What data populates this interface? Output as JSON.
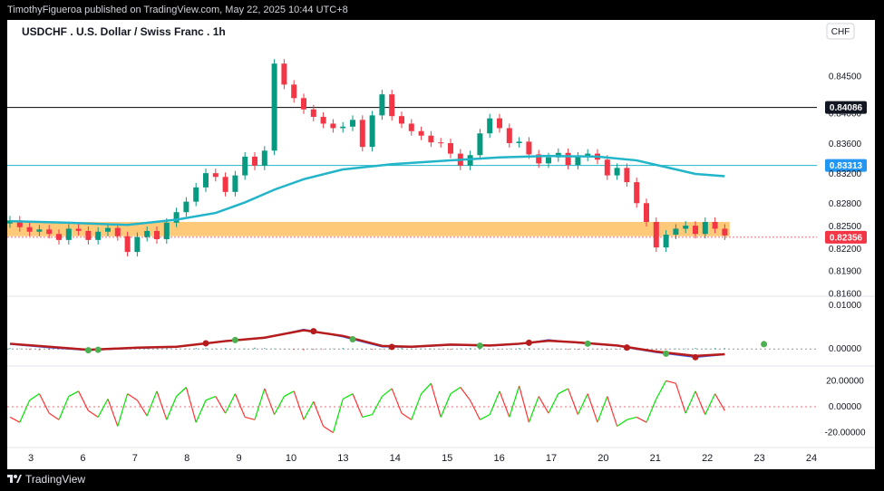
{
  "header": {
    "publish_line": "TimothyFigueroa published on TradingView.com, May 22, 2025 10:44 UTC+8"
  },
  "chart_title": "USDCHF . U.S. Dollar / Swiss Franc . 1h",
  "currency_label": "CHF",
  "footer": {
    "brand": "TradingView",
    "logo_icon": "tradingview-logo-icon"
  },
  "colors": {
    "bull_candle": "#089981",
    "bear_candle": "#f23645",
    "ma_line": "#22b5c9",
    "zone_fill": "#ffb74d",
    "resistance_line": "#000000",
    "support_line": "#22b5c9",
    "macd_line": "#2962ff",
    "signal_up": "#4caf50",
    "signal_down": "#b71c1c",
    "rsi_up": "#00e600",
    "rsi_down": "#ff3333"
  },
  "chart_data": [
    {
      "type": "candlestick",
      "panel": "price",
      "title": "USDCHF . U.S. Dollar / Swiss Franc . 1h",
      "x_tick_labels": [
        "3",
        "6",
        "7",
        "8",
        "9",
        "10",
        "13",
        "14",
        "15",
        "16",
        "17",
        "20",
        "21",
        "22",
        "23",
        "24"
      ],
      "y_ticks": [
        0.845,
        0.84,
        0.836,
        0.832,
        0.828,
        0.825,
        0.822,
        0.819,
        0.816
      ],
      "y_tick_labels": [
        "0.84500",
        "0.84000",
        "0.83600",
        "0.83200",
        "0.82800",
        "0.82500",
        "0.82200",
        "0.81900",
        "0.81600"
      ],
      "ylim": [
        0.8157,
        0.8495
      ],
      "close_path": [
        [
          0,
          0.8258
        ],
        [
          1,
          0.8249
        ],
        [
          2,
          0.8243
        ],
        [
          3,
          0.8246
        ],
        [
          4,
          0.824
        ],
        [
          5,
          0.8232
        ],
        [
          6,
          0.8247
        ],
        [
          7,
          0.8244
        ],
        [
          8,
          0.8232
        ],
        [
          9,
          0.8243
        ],
        [
          10,
          0.8248
        ],
        [
          11,
          0.8237
        ],
        [
          12,
          0.8216
        ],
        [
          13,
          0.8236
        ],
        [
          14,
          0.8244
        ],
        [
          15,
          0.8233
        ],
        [
          16,
          0.8255
        ],
        [
          17,
          0.8269
        ],
        [
          18,
          0.8283
        ],
        [
          19,
          0.8302
        ],
        [
          20,
          0.8321
        ],
        [
          21,
          0.8316
        ],
        [
          22,
          0.8296
        ],
        [
          23,
          0.8318
        ],
        [
          24,
          0.8343
        ],
        [
          25,
          0.8331
        ],
        [
          26,
          0.8351
        ],
        [
          27,
          0.8467
        ],
        [
          28,
          0.8439
        ],
        [
          29,
          0.8421
        ],
        [
          30,
          0.8406
        ],
        [
          31,
          0.8396
        ],
        [
          32,
          0.8387
        ],
        [
          33,
          0.8381
        ],
        [
          34,
          0.8383
        ],
        [
          35,
          0.8392
        ],
        [
          36,
          0.8356
        ],
        [
          37,
          0.8398
        ],
        [
          38,
          0.8426
        ],
        [
          39,
          0.8397
        ],
        [
          40,
          0.8387
        ],
        [
          41,
          0.8377
        ],
        [
          42,
          0.8371
        ],
        [
          43,
          0.8362
        ],
        [
          44,
          0.8361
        ],
        [
          45,
          0.8347
        ],
        [
          46,
          0.8331
        ],
        [
          47,
          0.8345
        ],
        [
          48,
          0.8374
        ],
        [
          49,
          0.8394
        ],
        [
          50,
          0.8381
        ],
        [
          51,
          0.8361
        ],
        [
          52,
          0.8363
        ],
        [
          53,
          0.8346
        ],
        [
          54,
          0.8334
        ],
        [
          55,
          0.8342
        ],
        [
          56,
          0.8348
        ],
        [
          57,
          0.8332
        ],
        [
          58,
          0.8343
        ],
        [
          59,
          0.8347
        ],
        [
          60,
          0.8339
        ],
        [
          61,
          0.8318
        ],
        [
          62,
          0.8328
        ],
        [
          63,
          0.8309
        ],
        [
          64,
          0.8281
        ],
        [
          65,
          0.8256
        ],
        [
          66,
          0.8222
        ],
        [
          67,
          0.8239
        ],
        [
          68,
          0.8247
        ],
        [
          69,
          0.8251
        ],
        [
          70,
          0.824
        ],
        [
          71,
          0.8256
        ],
        [
          72,
          0.8247
        ],
        [
          73,
          0.8238
        ]
      ],
      "moving_average": [
        [
          0,
          0.8257
        ],
        [
          6,
          0.8255
        ],
        [
          12,
          0.8252
        ],
        [
          17,
          0.8259
        ],
        [
          21,
          0.8268
        ],
        [
          24,
          0.8282
        ],
        [
          27,
          0.8299
        ],
        [
          30,
          0.8313
        ],
        [
          34,
          0.8326
        ],
        [
          39,
          0.8333
        ],
        [
          45,
          0.8338
        ],
        [
          50,
          0.8342
        ],
        [
          55,
          0.8344
        ],
        [
          60,
          0.8343
        ],
        [
          64,
          0.8338
        ],
        [
          67,
          0.8329
        ],
        [
          70,
          0.832
        ],
        [
          73,
          0.8317
        ]
      ],
      "zone": {
        "low": 0.8237,
        "high": 0.8256,
        "x_end": 73.5
      },
      "horizontal_levels": [
        {
          "value": 0.84086,
          "label": "0.84086",
          "role": "resistance"
        },
        {
          "value": 0.83313,
          "label": "0.83313",
          "role": "support"
        },
        {
          "value": 0.82356,
          "label": "0.82356",
          "role": "last"
        }
      ]
    },
    {
      "type": "line",
      "panel": "macd",
      "y_tick_labels": [
        "0.01000",
        "0.00000"
      ],
      "ylim": [
        -0.0035,
        0.0115
      ],
      "series": [
        {
          "values": [
            [
              0,
              0.0011
            ],
            [
              4,
              0.0003
            ],
            [
              8,
              -0.0003
            ],
            [
              13,
              0.0002
            ],
            [
              17,
              0.0004
            ],
            [
              22,
              0.0019
            ],
            [
              26,
              0.0025
            ],
            [
              30,
              0.0045
            ],
            [
              34,
              0.0028
            ],
            [
              38,
              0.0005
            ],
            [
              41,
              0.0004
            ],
            [
              45,
              0.0009
            ],
            [
              49,
              0.0007
            ],
            [
              52,
              0.0011
            ],
            [
              55,
              0.0021
            ],
            [
              58,
              0.0014
            ],
            [
              62,
              0.0007
            ],
            [
              66,
              -0.0008
            ],
            [
              70,
              -0.0019
            ],
            [
              73,
              -0.0013
            ]
          ]
        },
        {
          "values": [
            [
              0,
              0.0012
            ],
            [
              4,
              0.0005
            ],
            [
              8,
              -0.0002
            ],
            [
              13,
              0.0003
            ],
            [
              17,
              0.0005
            ],
            [
              22,
              0.0018
            ],
            [
              26,
              0.0026
            ],
            [
              30,
              0.0043
            ],
            [
              34,
              0.003
            ],
            [
              38,
              0.0007
            ],
            [
              41,
              0.0005
            ],
            [
              45,
              0.001
            ],
            [
              49,
              0.0008
            ],
            [
              52,
              0.0012
            ],
            [
              55,
              0.0019
            ],
            [
              58,
              0.0015
            ],
            [
              62,
              0.0008
            ],
            [
              66,
              -0.0006
            ],
            [
              70,
              -0.0016
            ],
            [
              73,
              -0.0012
            ]
          ]
        }
      ],
      "histogram": [
        0.0002,
        0.0001,
        -0.0002,
        -0.0003,
        -0.0002,
        -0.0001,
        -0.0002,
        -0.0001,
        0.0001,
        0.0001,
        0.0001,
        -0.0001,
        -0.0001,
        0.0001,
        0.0002,
        0.0001,
        0.0001,
        -0.0001,
        0.0001,
        0.0002,
        0.0002,
        0.0001,
        0.0002,
        0.0001,
        0.0001,
        0.0003,
        0.0002,
        0.0001,
        -0.0001,
        -0.0002,
        -0.0003,
        -0.0002,
        -0.0001,
        0.0001,
        0.0002,
        0.0001,
        -0.0001,
        -0.0002,
        -0.0001,
        0.0001,
        0.0002,
        0.0001,
        0.0001,
        0.0001,
        -0.0001,
        -0.0002,
        0.0001,
        0.0002,
        0.0001,
        -0.0001,
        -0.0001,
        0.0001,
        0.0002,
        0.0002,
        0.0001,
        -0.0001,
        -0.0001,
        -0.0002,
        -0.0002,
        -0.0001,
        -0.0001,
        -0.0002,
        -0.0001,
        -0.0002,
        -0.0003,
        -0.0002,
        -0.0002,
        -0.0001,
        0.0001,
        0.0001,
        0.0002,
        0.0001,
        0.0002,
        0.0002
      ],
      "cross_markers": [
        {
          "x": 8,
          "kind": "bull"
        },
        {
          "x": 9,
          "kind": "bull"
        },
        {
          "x": 20,
          "kind": "bear"
        },
        {
          "x": 23,
          "kind": "bull"
        },
        {
          "x": 31,
          "kind": "bear"
        },
        {
          "x": 35,
          "kind": "bull"
        },
        {
          "x": 39,
          "kind": "bear"
        },
        {
          "x": 48,
          "kind": "bull"
        },
        {
          "x": 53,
          "kind": "bear"
        },
        {
          "x": 59,
          "kind": "bull"
        },
        {
          "x": 63,
          "kind": "bear"
        },
        {
          "x": 67,
          "kind": "bull"
        },
        {
          "x": 70,
          "kind": "bear"
        },
        {
          "x": 77,
          "kind": "bull"
        }
      ]
    },
    {
      "type": "line",
      "panel": "oscillator",
      "y_tick_labels": [
        "20.00000",
        "0.00000",
        "-20.00000"
      ],
      "ylim": [
        -30,
        30
      ],
      "values": [
        -8,
        -12,
        5,
        10,
        -5,
        -10,
        8,
        12,
        -3,
        -8,
        6,
        -15,
        10,
        5,
        -7,
        12,
        -10,
        8,
        15,
        -12,
        5,
        8,
        -5,
        10,
        -8,
        -10,
        14,
        -6,
        8,
        12,
        -10,
        4,
        -15,
        -20,
        6,
        10,
        -8,
        -6,
        8,
        14,
        -5,
        -10,
        10,
        18,
        -8,
        10,
        15,
        5,
        -10,
        -6,
        12,
        -8,
        16,
        -12,
        8,
        -5,
        10,
        14,
        -6,
        10,
        -12,
        8,
        -15,
        -10,
        -8,
        -12,
        6,
        20,
        18,
        -5,
        12,
        -6,
        10,
        -3
      ]
    }
  ]
}
